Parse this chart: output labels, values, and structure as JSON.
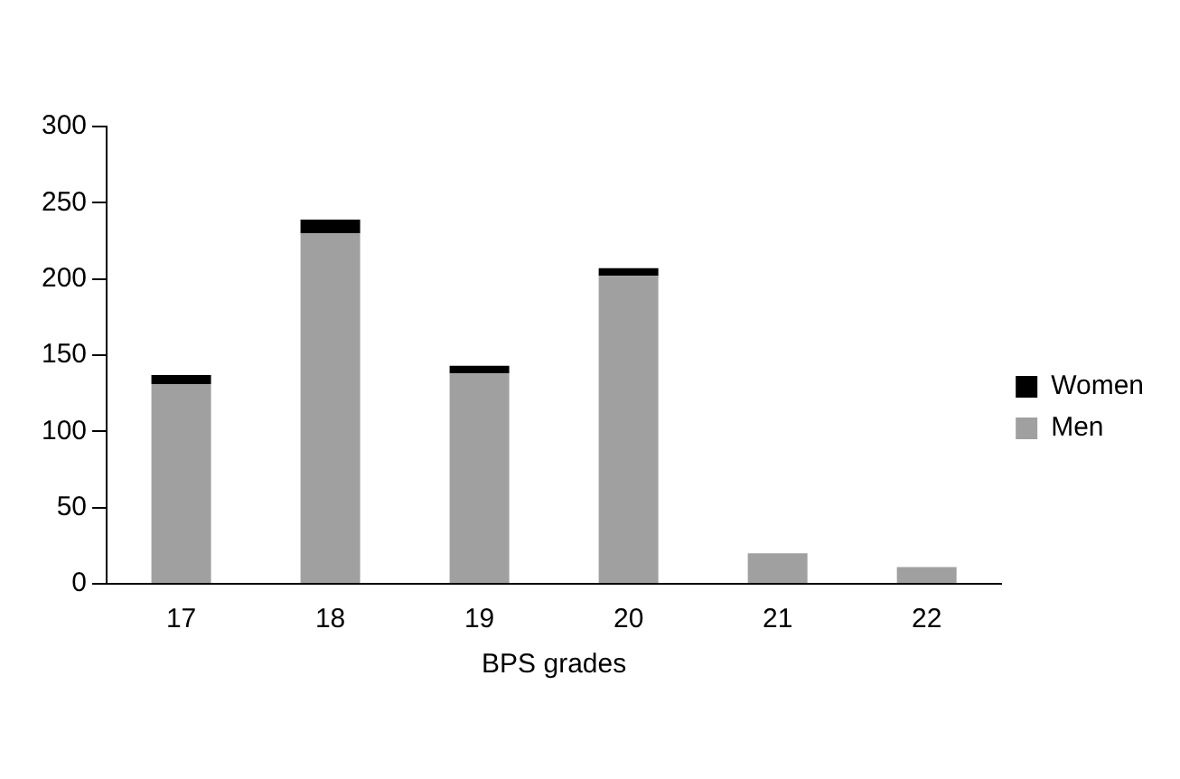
{
  "chart_data": {
    "type": "bar",
    "stacked": true,
    "xlabel": "BPS grades",
    "categories": [
      "17",
      "18",
      "19",
      "20",
      "21",
      "22"
    ],
    "series": [
      {
        "name": "Men",
        "color": "#a0a0a0",
        "values": [
          131,
          230,
          138,
          202,
          20,
          11
        ]
      },
      {
        "name": "Women",
        "color": "#000000",
        "values": [
          6,
          9,
          5,
          5,
          0,
          0
        ]
      }
    ],
    "ylim": [
      0,
      300
    ],
    "yticks": [
      0,
      50,
      100,
      150,
      200,
      250,
      300
    ],
    "grid": false,
    "legend": "right"
  }
}
